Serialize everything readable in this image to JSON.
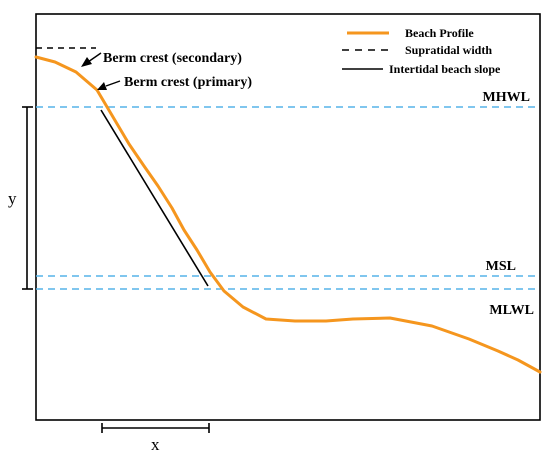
{
  "legend": {
    "beach_profile": "Beach Profile",
    "supratidal_width": "Supratidal width",
    "intertidal_slope": "Intertidal beach slope"
  },
  "levels": {
    "mhwl": "MHWL",
    "msl": "MSL",
    "mlwl": "MLWL"
  },
  "annotations": {
    "berm_secondary": "Berm crest (secondary)",
    "berm_primary": "Berm crest (primary)"
  },
  "dimensions": {
    "x_label": "x",
    "y_label": "y"
  },
  "colors": {
    "profile": "#f5961e",
    "water_level": "#56b4e9",
    "line": "#000000"
  }
}
